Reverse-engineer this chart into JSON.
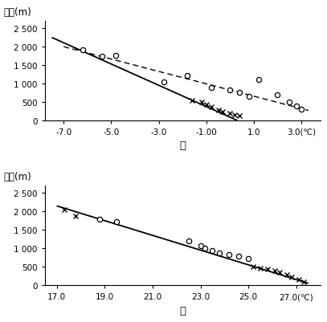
{
  "chart1": {
    "title_y": "海拔(m)",
    "xlabel": "甲",
    "xticks": [
      -7.0,
      -5.0,
      -3.0,
      -1.0,
      1.0,
      3.0
    ],
    "xticklabels": [
      "-7.0",
      "-5.0",
      "-3.0",
      "-1.00",
      "1.0",
      "3.0(℃)"
    ],
    "xlim": [
      -7.8,
      3.8
    ],
    "ylim": [
      0,
      2700
    ],
    "yticks": [
      0,
      500,
      1000,
      1500,
      2000,
      2500
    ],
    "yticklabels": [
      "0",
      "500",
      "1 000",
      "1 500",
      "2 000",
      "2 500"
    ],
    "solid_line": {
      "x": [
        -7.5,
        0.3
      ],
      "y": [
        2250,
        0
      ]
    },
    "dashed_line": {
      "x": [
        -7.0,
        3.3
      ],
      "y": [
        2000,
        270
      ]
    },
    "circle_points": [
      [
        -6.2,
        1920
      ],
      [
        -5.4,
        1730
      ],
      [
        -4.8,
        1760
      ],
      [
        -2.8,
        1050
      ],
      [
        -1.8,
        1220
      ],
      [
        -0.8,
        900
      ],
      [
        0.0,
        820
      ],
      [
        0.4,
        750
      ],
      [
        0.8,
        650
      ],
      [
        1.2,
        1100
      ],
      [
        2.0,
        700
      ],
      [
        2.5,
        510
      ],
      [
        2.8,
        390
      ],
      [
        3.0,
        300
      ]
    ],
    "cross_points": [
      [
        -1.6,
        550
      ],
      [
        -1.2,
        490
      ],
      [
        -1.0,
        440
      ],
      [
        -0.8,
        370
      ],
      [
        -0.5,
        290
      ],
      [
        -0.3,
        240
      ],
      [
        0.0,
        190
      ],
      [
        0.2,
        160
      ],
      [
        0.4,
        130
      ]
    ]
  },
  "chart2": {
    "title_y": "海拔(m)",
    "xlabel": "乙",
    "xticks": [
      17.0,
      19.0,
      21.0,
      23.0,
      25.0,
      27.0
    ],
    "xticklabels": [
      "17.0",
      "19.0",
      "21.0",
      "23.0",
      "25.0",
      "27.0(℃)"
    ],
    "xlim": [
      16.5,
      28.0
    ],
    "ylim": [
      0,
      2700
    ],
    "yticks": [
      0,
      500,
      1000,
      1500,
      2000,
      2500
    ],
    "yticklabels": [
      "0",
      "500",
      "1 000",
      "1 500",
      "2 000",
      "2 500"
    ],
    "solid_line": {
      "x": [
        17.0,
        27.5
      ],
      "y": [
        2150,
        50
      ]
    },
    "circle_points": [
      [
        18.8,
        1780
      ],
      [
        19.5,
        1720
      ],
      [
        22.5,
        1200
      ],
      [
        23.0,
        1060
      ],
      [
        23.2,
        1000
      ],
      [
        23.5,
        930
      ],
      [
        23.8,
        870
      ],
      [
        24.2,
        830
      ],
      [
        24.6,
        790
      ],
      [
        25.0,
        730
      ]
    ],
    "cross_points": [
      [
        17.3,
        2050
      ],
      [
        17.8,
        1880
      ],
      [
        25.2,
        500
      ],
      [
        25.5,
        470
      ],
      [
        25.8,
        440
      ],
      [
        26.1,
        390
      ],
      [
        26.3,
        340
      ],
      [
        26.6,
        280
      ],
      [
        26.8,
        220
      ],
      [
        27.1,
        150
      ],
      [
        27.3,
        90
      ]
    ]
  },
  "background_color": "#ffffff",
  "text_color": "#000000",
  "fontsize": 8.5
}
